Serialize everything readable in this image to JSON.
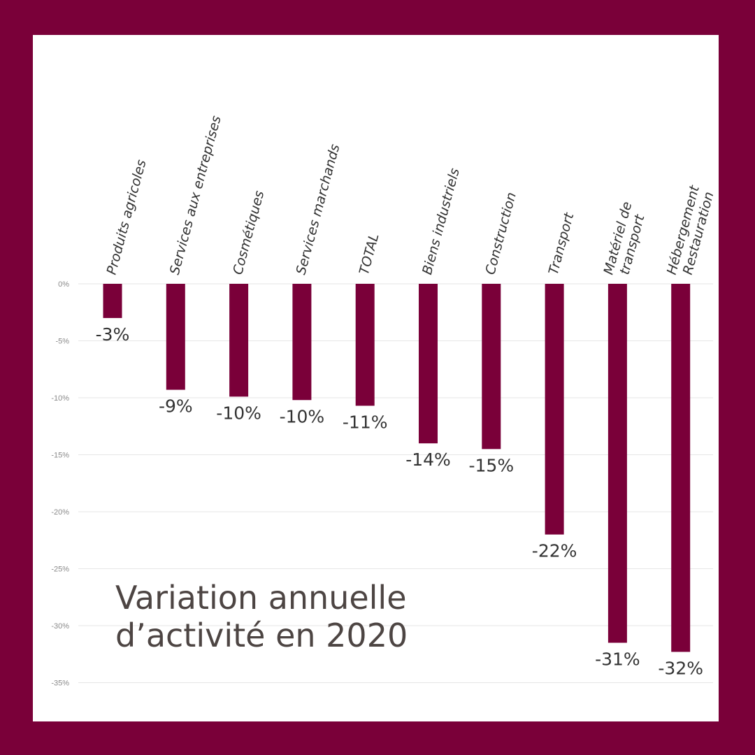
{
  "colors": {
    "frame": "#7a0039",
    "bar": "#7a0039",
    "panel": "#ffffff",
    "grid": "#e6e6e6",
    "tick_text": "#8a8a8a",
    "label_text": "#333333",
    "title_text": "#4d4543"
  },
  "chart_data": {
    "type": "bar",
    "title_lines": [
      "Variation annuelle",
      "d’activité en 2020"
    ],
    "categories": [
      [
        "Produits agricoles"
      ],
      [
        "Services aux entreprises"
      ],
      [
        "Cosmétiques"
      ],
      [
        "Services marchands"
      ],
      [
        "TOTAL"
      ],
      [
        "Biens industriels"
      ],
      [
        "Construction"
      ],
      [
        "Transport"
      ],
      [
        "Matériel de",
        "transport"
      ],
      [
        "Hébergement",
        "Restauration"
      ]
    ],
    "values": [
      -3,
      -9.3,
      -9.9,
      -10.2,
      -10.7,
      -14,
      -14.5,
      -22,
      -31.5,
      -32.3
    ],
    "value_labels": [
      "-3%",
      "-9%",
      "-10%",
      "-10%",
      "-11%",
      "-14%",
      "-15%",
      "-22%",
      "-31%",
      "-32%"
    ],
    "y_ticks": [
      0,
      -5,
      -10,
      -15,
      -20,
      -25,
      -30,
      -35
    ],
    "y_tick_labels": [
      "0%",
      "-5%",
      "-10%",
      "-15%",
      "-20%",
      "-25%",
      "-30%",
      "-35%"
    ],
    "ylim": [
      -35,
      0
    ],
    "grid": true,
    "legend": "none",
    "category_label_orientation": "rotated"
  }
}
